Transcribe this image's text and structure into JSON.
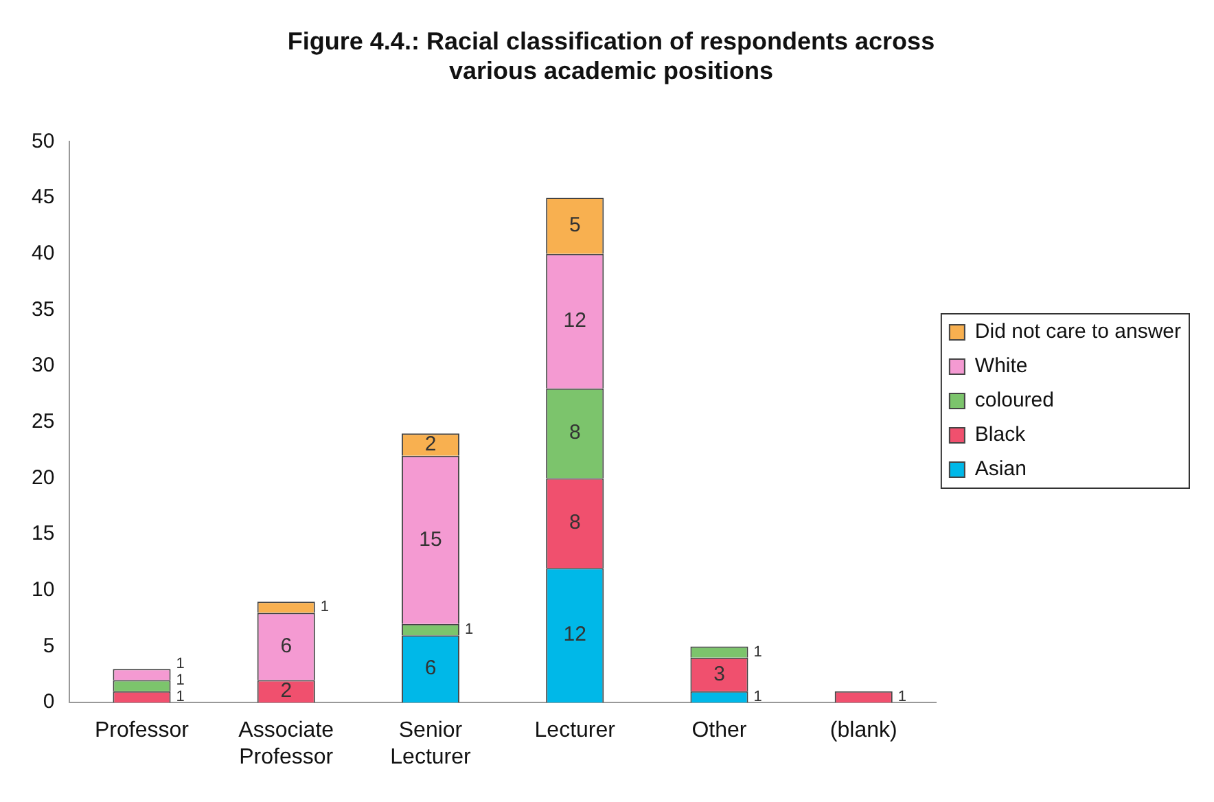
{
  "chart_data": {
    "type": "bar",
    "stacked": true,
    "title": "Figure 4.4.: Racial classification of respondents across various academic positions",
    "categories": [
      "Professor",
      "Associate Professor",
      "Senior Lecturer",
      "Lecturer",
      "Other",
      "(blank)"
    ],
    "series": [
      {
        "name": "Asian",
        "color": "#00b8e8",
        "values": [
          null,
          null,
          6,
          12,
          1,
          null
        ],
        "value_labels": [
          null,
          null,
          "6",
          "12",
          "1",
          null
        ]
      },
      {
        "name": "Black",
        "color": "#f0506e",
        "values": [
          1,
          2,
          null,
          8,
          3,
          1
        ],
        "value_labels": [
          "1",
          "2",
          null,
          "8",
          "3",
          "1"
        ]
      },
      {
        "name": "coloured",
        "color": "#7cc46c",
        "values": [
          1,
          null,
          1,
          8,
          1,
          null
        ],
        "value_labels": [
          "1",
          null,
          "1",
          "8",
          "1",
          null
        ]
      },
      {
        "name": "White",
        "color": "#f49ad2",
        "values": [
          1,
          6,
          15,
          12,
          null,
          null
        ],
        "value_labels": [
          "1",
          "6",
          "15",
          "12",
          null,
          null
        ]
      },
      {
        "name": "Did not care to answer",
        "color": "#f8b050",
        "values": [
          null,
          1,
          2,
          5,
          null,
          null
        ],
        "value_labels": [
          null,
          "1",
          "2",
          "5",
          null,
          null
        ]
      }
    ],
    "ylim": [
      0,
      50
    ],
    "yticks": [
      0,
      5,
      10,
      15,
      20,
      25,
      30,
      35,
      40,
      45,
      50
    ],
    "grid": false,
    "legend": "right"
  }
}
